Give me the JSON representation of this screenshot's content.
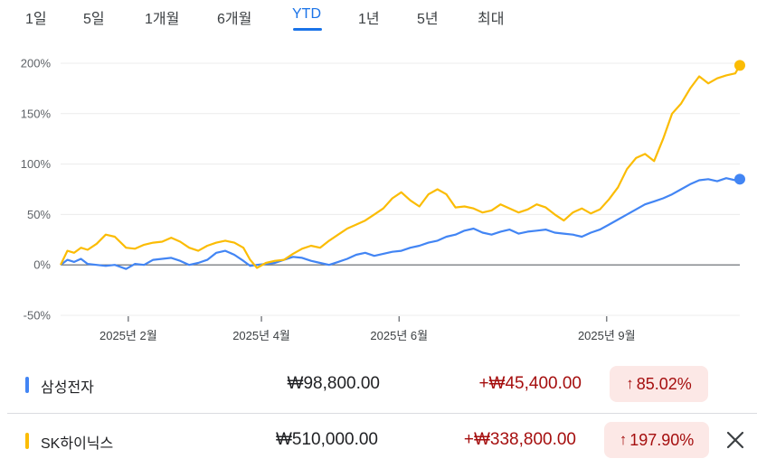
{
  "tabs": [
    {
      "label": "1일"
    },
    {
      "label": "5일"
    },
    {
      "label": "1개월"
    },
    {
      "label": "6개월"
    },
    {
      "label": "YTD",
      "active": true
    },
    {
      "label": "1년"
    },
    {
      "label": "5년"
    },
    {
      "label": "최대"
    }
  ],
  "colors": {
    "samsung": "#4285f4",
    "skhynix": "#fbbc04",
    "accent": "#1a73e8",
    "gain_text": "#a50e0e",
    "gain_bg": "#fce8e6"
  },
  "chart_data": {
    "type": "line",
    "title": "",
    "xlabel": "",
    "ylabel": "",
    "x_tick_labels": [
      "2025년 2월",
      "2025년 4월",
      "2025년 6월",
      "2025년 9월"
    ],
    "y_tick_labels": [
      "200%",
      "150%",
      "100%",
      "50%",
      "0%",
      "-50%"
    ],
    "y_ticks": [
      200,
      150,
      100,
      50,
      0,
      -50
    ],
    "ylim": [
      -50,
      200
    ],
    "xlim": [
      "2025-01-02",
      "2025-10-30"
    ],
    "x_ticks": [
      "2025-02-01",
      "2025-04-01",
      "2025-06-01",
      "2025-09-01"
    ],
    "grid": true,
    "series": [
      {
        "name": "삼성전자",
        "color": "#4285f4",
        "points": [
          [
            "2025-01-02",
            0
          ],
          [
            "2025-01-05",
            5
          ],
          [
            "2025-01-08",
            3
          ],
          [
            "2025-01-11",
            6
          ],
          [
            "2025-01-14",
            1
          ],
          [
            "2025-01-18",
            0
          ],
          [
            "2025-01-22",
            -1
          ],
          [
            "2025-01-26",
            0
          ],
          [
            "2025-01-31",
            -4
          ],
          [
            "2025-02-04",
            1
          ],
          [
            "2025-02-08",
            0
          ],
          [
            "2025-02-12",
            5
          ],
          [
            "2025-02-16",
            6
          ],
          [
            "2025-02-20",
            7
          ],
          [
            "2025-02-24",
            4
          ],
          [
            "2025-02-28",
            0
          ],
          [
            "2025-03-04",
            2
          ],
          [
            "2025-03-08",
            5
          ],
          [
            "2025-03-12",
            12
          ],
          [
            "2025-03-16",
            14
          ],
          [
            "2025-03-20",
            10
          ],
          [
            "2025-03-24",
            4
          ],
          [
            "2025-03-27",
            -1
          ],
          [
            "2025-03-30",
            0
          ],
          [
            "2025-04-03",
            1
          ],
          [
            "2025-04-07",
            2
          ],
          [
            "2025-04-11",
            5
          ],
          [
            "2025-04-15",
            8
          ],
          [
            "2025-04-19",
            7
          ],
          [
            "2025-04-23",
            4
          ],
          [
            "2025-04-27",
            2
          ],
          [
            "2025-05-01",
            0
          ],
          [
            "2025-05-05",
            3
          ],
          [
            "2025-05-09",
            6
          ],
          [
            "2025-05-13",
            10
          ],
          [
            "2025-05-17",
            12
          ],
          [
            "2025-05-21",
            9
          ],
          [
            "2025-05-25",
            11
          ],
          [
            "2025-05-29",
            13
          ],
          [
            "2025-06-02",
            14
          ],
          [
            "2025-06-06",
            17
          ],
          [
            "2025-06-10",
            19
          ],
          [
            "2025-06-14",
            22
          ],
          [
            "2025-06-18",
            24
          ],
          [
            "2025-06-22",
            28
          ],
          [
            "2025-06-26",
            30
          ],
          [
            "2025-06-30",
            34
          ],
          [
            "2025-07-04",
            36
          ],
          [
            "2025-07-08",
            32
          ],
          [
            "2025-07-12",
            30
          ],
          [
            "2025-07-16",
            33
          ],
          [
            "2025-07-20",
            35
          ],
          [
            "2025-07-24",
            31
          ],
          [
            "2025-07-28",
            33
          ],
          [
            "2025-08-01",
            34
          ],
          [
            "2025-08-05",
            35
          ],
          [
            "2025-08-09",
            32
          ],
          [
            "2025-08-13",
            31
          ],
          [
            "2025-08-17",
            30
          ],
          [
            "2025-08-21",
            28
          ],
          [
            "2025-08-25",
            32
          ],
          [
            "2025-08-29",
            35
          ],
          [
            "2025-09-02",
            40
          ],
          [
            "2025-09-06",
            45
          ],
          [
            "2025-09-10",
            50
          ],
          [
            "2025-09-14",
            55
          ],
          [
            "2025-09-18",
            60
          ],
          [
            "2025-09-22",
            63
          ],
          [
            "2025-09-26",
            66
          ],
          [
            "2025-09-30",
            70
          ],
          [
            "2025-10-04",
            75
          ],
          [
            "2025-10-08",
            80
          ],
          [
            "2025-10-12",
            84
          ],
          [
            "2025-10-16",
            85
          ],
          [
            "2025-10-20",
            83
          ],
          [
            "2025-10-24",
            86
          ],
          [
            "2025-10-28",
            84
          ],
          [
            "2025-10-30",
            85.02
          ]
        ]
      },
      {
        "name": "SK하이닉스",
        "color": "#fbbc04",
        "points": [
          [
            "2025-01-02",
            0
          ],
          [
            "2025-01-05",
            14
          ],
          [
            "2025-01-08",
            12
          ],
          [
            "2025-01-11",
            17
          ],
          [
            "2025-01-14",
            15
          ],
          [
            "2025-01-18",
            21
          ],
          [
            "2025-01-22",
            30
          ],
          [
            "2025-01-26",
            28
          ],
          [
            "2025-01-31",
            17
          ],
          [
            "2025-02-04",
            16
          ],
          [
            "2025-02-08",
            20
          ],
          [
            "2025-02-12",
            22
          ],
          [
            "2025-02-16",
            23
          ],
          [
            "2025-02-20",
            27
          ],
          [
            "2025-02-24",
            23
          ],
          [
            "2025-02-28",
            17
          ],
          [
            "2025-03-04",
            14
          ],
          [
            "2025-03-08",
            19
          ],
          [
            "2025-03-12",
            22
          ],
          [
            "2025-03-16",
            24
          ],
          [
            "2025-03-20",
            22
          ],
          [
            "2025-03-24",
            17
          ],
          [
            "2025-03-27",
            5
          ],
          [
            "2025-03-30",
            -3
          ],
          [
            "2025-04-03",
            2
          ],
          [
            "2025-04-07",
            4
          ],
          [
            "2025-04-11",
            5
          ],
          [
            "2025-04-15",
            11
          ],
          [
            "2025-04-19",
            16
          ],
          [
            "2025-04-23",
            19
          ],
          [
            "2025-04-27",
            17
          ],
          [
            "2025-05-01",
            24
          ],
          [
            "2025-05-05",
            30
          ],
          [
            "2025-05-09",
            36
          ],
          [
            "2025-05-13",
            40
          ],
          [
            "2025-05-17",
            44
          ],
          [
            "2025-05-21",
            50
          ],
          [
            "2025-05-25",
            56
          ],
          [
            "2025-05-29",
            66
          ],
          [
            "2025-06-02",
            72
          ],
          [
            "2025-06-06",
            64
          ],
          [
            "2025-06-10",
            58
          ],
          [
            "2025-06-14",
            70
          ],
          [
            "2025-06-18",
            75
          ],
          [
            "2025-06-22",
            70
          ],
          [
            "2025-06-26",
            57
          ],
          [
            "2025-06-30",
            58
          ],
          [
            "2025-07-04",
            56
          ],
          [
            "2025-07-08",
            52
          ],
          [
            "2025-07-12",
            54
          ],
          [
            "2025-07-16",
            60
          ],
          [
            "2025-07-20",
            56
          ],
          [
            "2025-07-24",
            52
          ],
          [
            "2025-07-28",
            55
          ],
          [
            "2025-08-01",
            60
          ],
          [
            "2025-08-05",
            57
          ],
          [
            "2025-08-09",
            50
          ],
          [
            "2025-08-13",
            44
          ],
          [
            "2025-08-17",
            52
          ],
          [
            "2025-08-21",
            56
          ],
          [
            "2025-08-25",
            51
          ],
          [
            "2025-08-29",
            55
          ],
          [
            "2025-09-02",
            65
          ],
          [
            "2025-09-06",
            77
          ],
          [
            "2025-09-10",
            95
          ],
          [
            "2025-09-14",
            106
          ],
          [
            "2025-09-18",
            110
          ],
          [
            "2025-09-22",
            103
          ],
          [
            "2025-09-26",
            125
          ],
          [
            "2025-09-30",
            150
          ],
          [
            "2025-10-04",
            160
          ],
          [
            "2025-10-08",
            175
          ],
          [
            "2025-10-12",
            187
          ],
          [
            "2025-10-16",
            180
          ],
          [
            "2025-10-20",
            185
          ],
          [
            "2025-10-24",
            188
          ],
          [
            "2025-10-28",
            190
          ],
          [
            "2025-10-30",
            197.9
          ]
        ]
      }
    ]
  },
  "stocks": [
    {
      "name": "삼성전자",
      "price": "₩98,800.00",
      "change": "+₩45,400.00",
      "percent": "85.02%",
      "arrow": "↑"
    },
    {
      "name": "SK하이닉스",
      "price": "₩510,000.00",
      "change": "+₩338,800.00",
      "percent": "197.90%",
      "arrow": "↑"
    }
  ]
}
